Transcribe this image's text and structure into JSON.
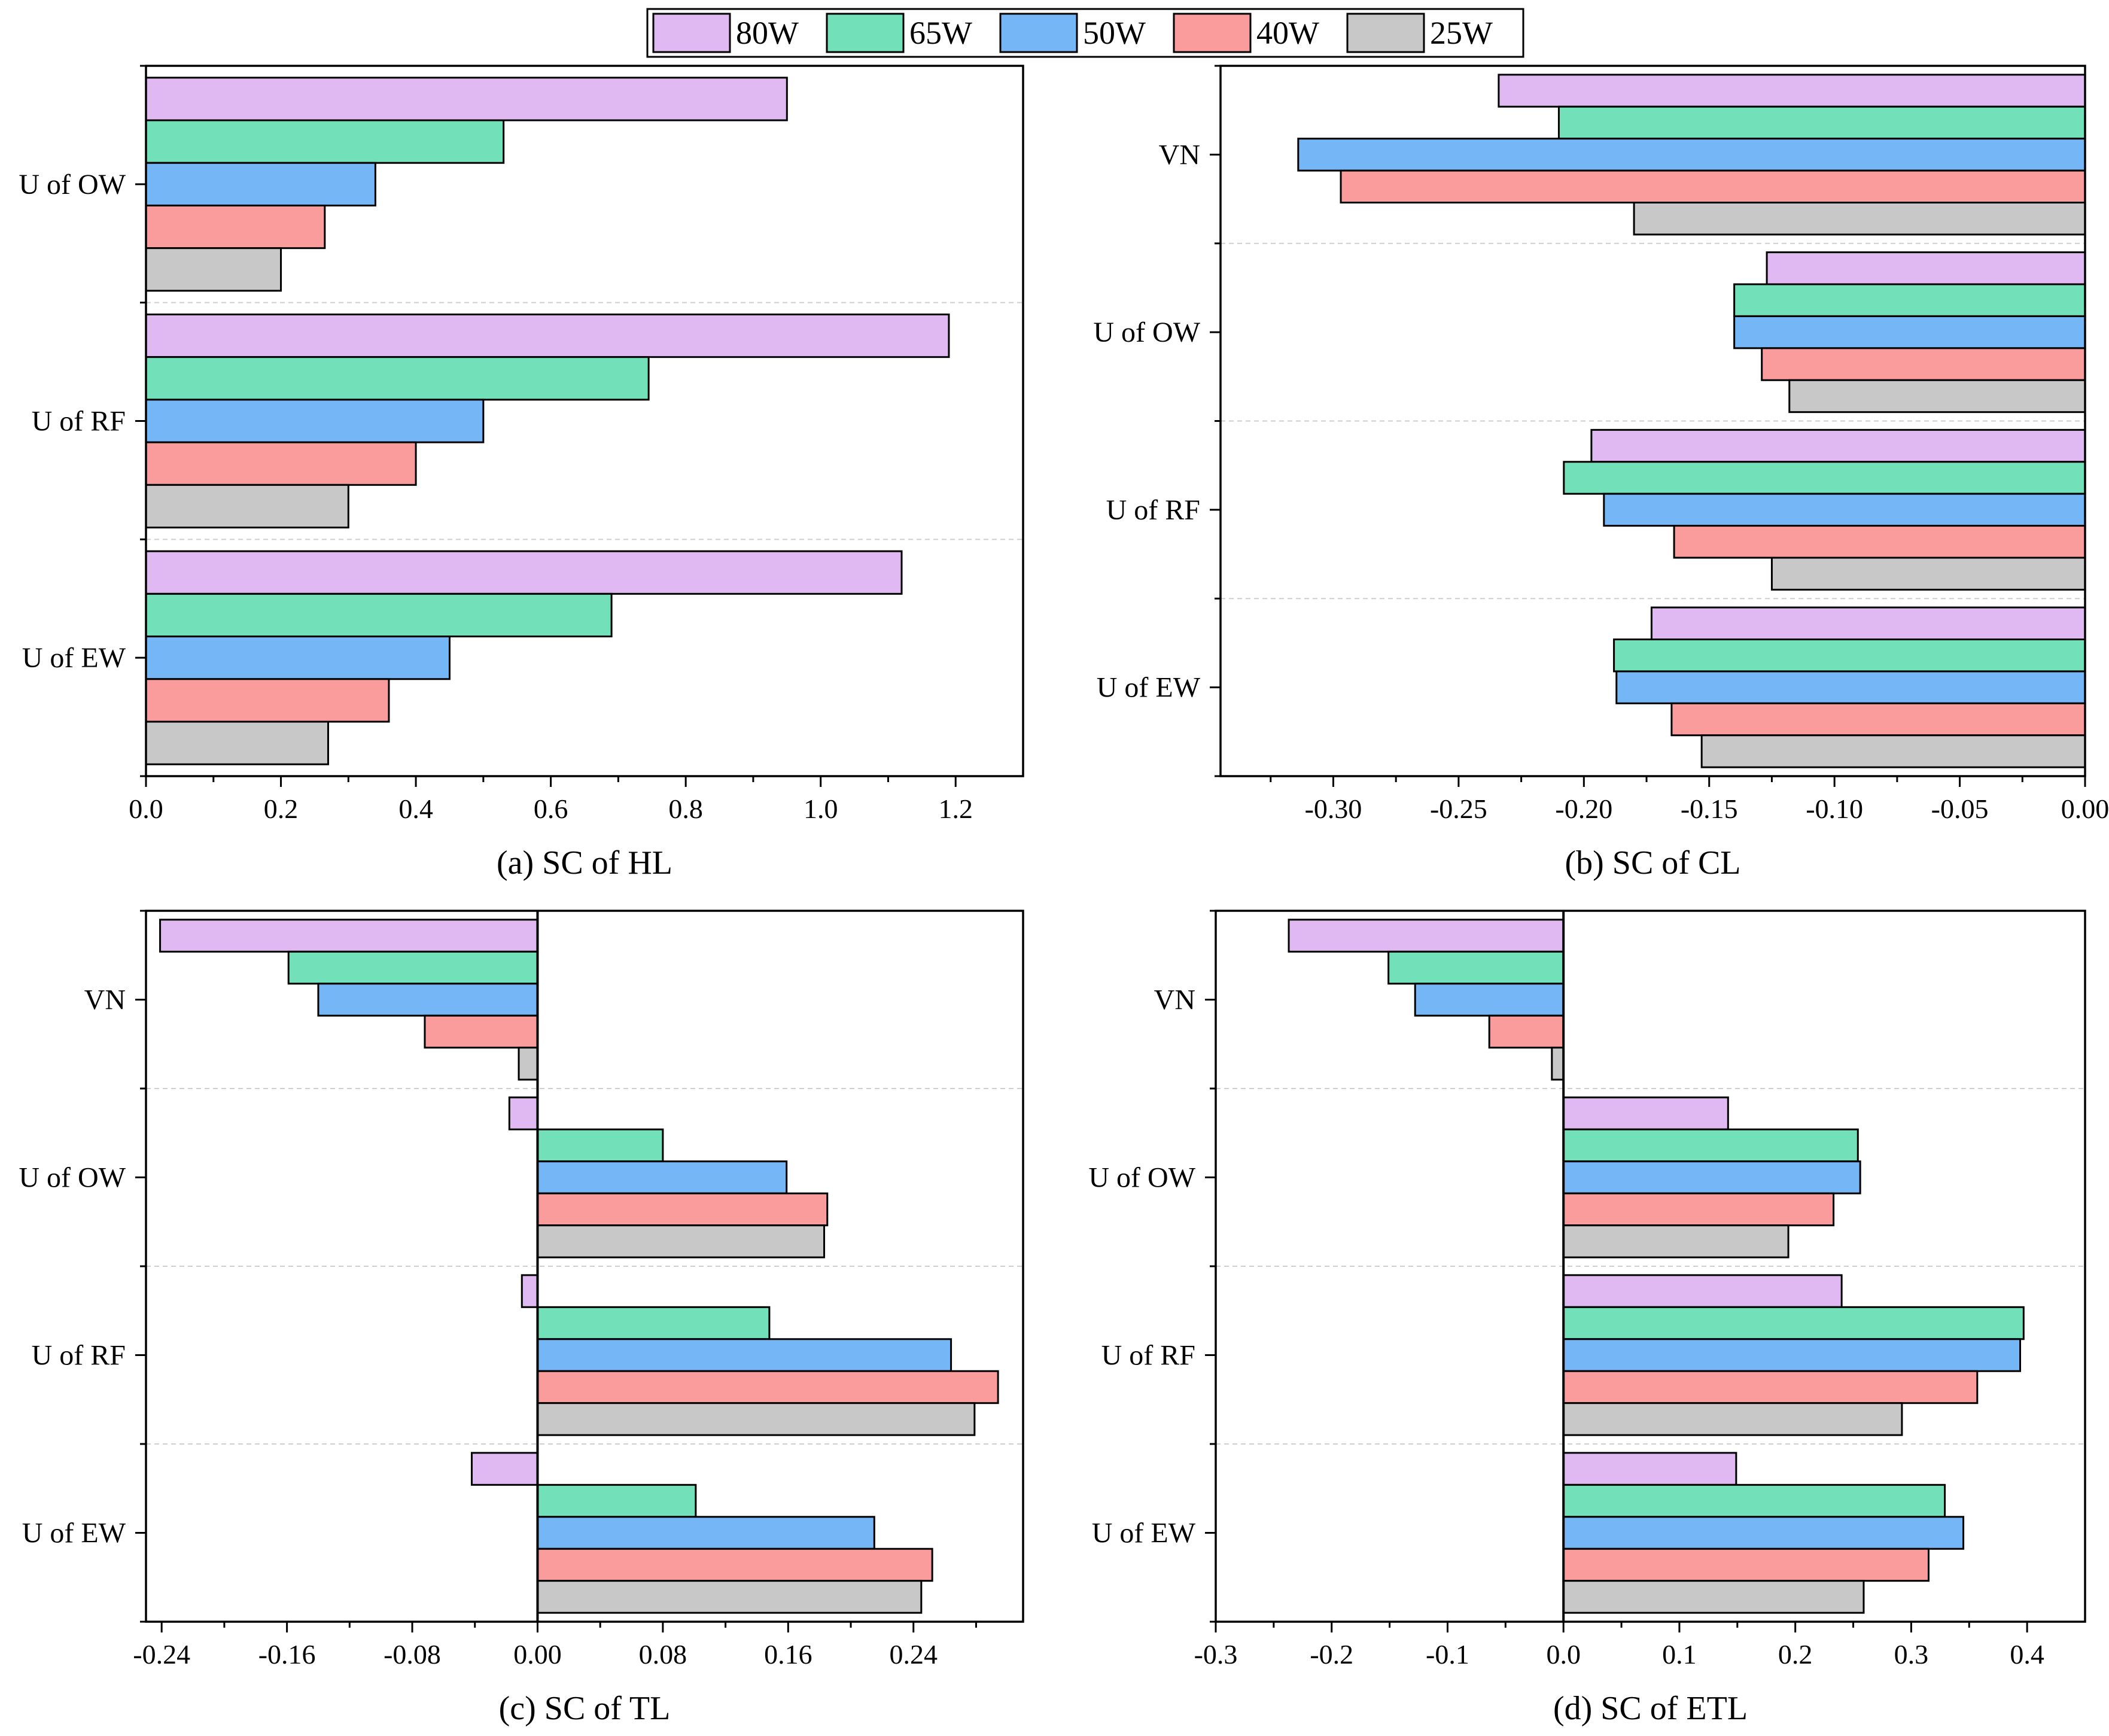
{
  "legend": [
    {
      "name": "80W",
      "color": "#E0B8F2"
    },
    {
      "name": "65W",
      "color": "#72E0B8"
    },
    {
      "name": "50W",
      "color": "#74B6F6"
    },
    {
      "name": "40W",
      "color": "#FA9C9C"
    },
    {
      "name": "25W",
      "color": "#C8C8C8"
    }
  ],
  "chart_data": [
    {
      "type": "bar",
      "orientation": "horizontal",
      "title": "(a) SC of HL",
      "categories": [
        "U of OW",
        "U of RF",
        "U of EW"
      ],
      "xlim": [
        0,
        1.3
      ],
      "xticks": [
        0.0,
        0.2,
        0.4,
        0.6,
        0.8,
        1.0,
        1.2
      ],
      "xtick_labels": [
        "0.0",
        "0.2",
        "0.4",
        "0.6",
        "0.8",
        "1.0",
        "1.2"
      ],
      "minor_xticks": [
        0.1,
        0.3,
        0.5,
        0.7,
        0.9,
        1.1
      ],
      "series": [
        {
          "name": "80W",
          "values": [
            0.95,
            1.19,
            1.12
          ]
        },
        {
          "name": "65W",
          "values": [
            0.53,
            0.745,
            0.69
          ]
        },
        {
          "name": "50W",
          "values": [
            0.34,
            0.5,
            0.45
          ]
        },
        {
          "name": "40W",
          "values": [
            0.265,
            0.4,
            0.36
          ]
        },
        {
          "name": "25W",
          "values": [
            0.2,
            0.3,
            0.27
          ]
        }
      ]
    },
    {
      "type": "bar",
      "orientation": "horizontal",
      "title": "(b) SC of CL",
      "categories": [
        "VN",
        "U of OW",
        "U of RF",
        "U of EW"
      ],
      "xlim": [
        -0.345,
        0.0
      ],
      "xticks": [
        -0.3,
        -0.25,
        -0.2,
        -0.15,
        -0.1,
        -0.05,
        0.0
      ],
      "xtick_labels": [
        "-0.30",
        "-0.25",
        "-0.20",
        "-0.15",
        "-0.10",
        "-0.05",
        "0.00"
      ],
      "minor_xticks": [
        -0.325,
        -0.275,
        -0.225,
        -0.175,
        -0.125,
        -0.075,
        -0.025
      ],
      "series": [
        {
          "name": "80W",
          "values": [
            -0.234,
            -0.127,
            -0.197,
            -0.173
          ]
        },
        {
          "name": "65W",
          "values": [
            -0.21,
            -0.14,
            -0.208,
            -0.188
          ]
        },
        {
          "name": "50W",
          "values": [
            -0.314,
            -0.14,
            -0.192,
            -0.187
          ]
        },
        {
          "name": "40W",
          "values": [
            -0.297,
            -0.129,
            -0.164,
            -0.165
          ]
        },
        {
          "name": "25W",
          "values": [
            -0.18,
            -0.118,
            -0.125,
            -0.153
          ]
        }
      ]
    },
    {
      "type": "bar",
      "orientation": "horizontal",
      "title": "(c) SC of TL",
      "categories": [
        "VN",
        "U of OW",
        "U of RF",
        "U of EW"
      ],
      "xlim": [
        -0.25,
        0.31
      ],
      "xticks": [
        -0.24,
        -0.16,
        -0.08,
        0.0,
        0.08,
        0.16,
        0.24
      ],
      "xtick_labels": [
        "-0.24",
        "-0.16",
        "-0.08",
        "0.00",
        "0.08",
        "0.16",
        "0.24"
      ],
      "minor_xticks": [
        -0.2,
        -0.12,
        -0.04,
        0.04,
        0.12,
        0.2,
        0.28
      ],
      "zero_line": true,
      "series": [
        {
          "name": "80W",
          "values": [
            -0.241,
            -0.018,
            -0.01,
            -0.042
          ]
        },
        {
          "name": "65W",
          "values": [
            -0.159,
            0.08,
            0.148,
            0.101
          ]
        },
        {
          "name": "50W",
          "values": [
            -0.14,
            0.159,
            0.264,
            0.215
          ]
        },
        {
          "name": "40W",
          "values": [
            -0.072,
            0.185,
            0.294,
            0.252
          ]
        },
        {
          "name": "25W",
          "values": [
            -0.012,
            0.183,
            0.279,
            0.245
          ]
        }
      ]
    },
    {
      "type": "bar",
      "orientation": "horizontal",
      "title": "(d) SC of ETL",
      "categories": [
        "VN",
        "U of OW",
        "U of RF",
        "U of EW"
      ],
      "xlim": [
        -0.3,
        0.45
      ],
      "xticks": [
        -0.3,
        -0.2,
        -0.1,
        0.0,
        0.1,
        0.2,
        0.3,
        0.4
      ],
      "xtick_labels": [
        "-0.3",
        "-0.2",
        "-0.1",
        "0.0",
        "0.1",
        "0.2",
        "0.3",
        "0.4"
      ],
      "minor_xticks": [
        -0.25,
        -0.15,
        -0.05,
        0.05,
        0.15,
        0.25,
        0.35
      ],
      "zero_line": true,
      "series": [
        {
          "name": "80W",
          "values": [
            -0.237,
            0.142,
            0.24,
            0.149
          ]
        },
        {
          "name": "65W",
          "values": [
            -0.151,
            0.254,
            0.397,
            0.329
          ]
        },
        {
          "name": "50W",
          "values": [
            -0.128,
            0.256,
            0.394,
            0.345
          ]
        },
        {
          "name": "40W",
          "values": [
            -0.064,
            0.233,
            0.357,
            0.315
          ]
        },
        {
          "name": "25W",
          "values": [
            -0.01,
            0.194,
            0.292,
            0.259
          ]
        }
      ]
    }
  ]
}
